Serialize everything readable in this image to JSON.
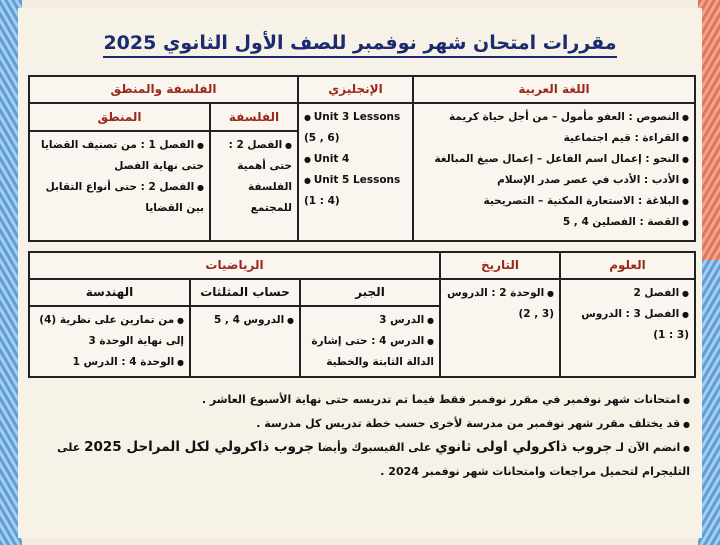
{
  "title": "مقررات امتحان شهر نوفمبر للصف الأول الثانوي 2025",
  "table1": {
    "headers": {
      "arabic": "اللغة العربية",
      "english": "الإنجليزي",
      "philosophy_logic": "الفلسفة والمنطق",
      "philosophy": "الفلسفة",
      "logic": "المنطق"
    },
    "arabic": [
      "النصوص : العفو مأمول – من أجل حياة كريمة",
      "القراءة : قيم اجتماعية",
      "النحو : إعمال اسم الفاعل – إعمال صيغ المبالغة",
      "الأدب : الأدب في عصر صدر الإسلام",
      "البلاغة : الاستعارة المكنية – التصريحية",
      "القصة : الفصلين 4 , 5"
    ],
    "english": [
      "Unit 3 Lessons (5 , 6)",
      "Unit 4",
      "Unit 5 Lessons (1 : 4)"
    ],
    "philosophy": [
      "الفصل 2 : حتى أهمية الفلسفة للمجتمع"
    ],
    "logic": [
      "الفصل 1 : من تصنيف القضايا حتى نهاية الفصل",
      "الفصل 2 : حتى أنواع التقابل بين القضايا"
    ]
  },
  "table2": {
    "headers": {
      "science": "العلوم",
      "history": "التاريخ",
      "math": "الرياضيات",
      "algebra": "الجبر",
      "trig": "حساب المثلثات",
      "geometry": "الهندسة"
    },
    "science": [
      "الفصل 2",
      "الفصل 3 : الدروس (3 : 1)"
    ],
    "history": [
      "الوحدة 2 : الدروس (3 , 2)"
    ],
    "algebra": [
      "الدرس 3",
      "الدرس 4 : حتى إشارة الدالة الثابتة والخطية"
    ],
    "trig": [
      "الدروس 4 , 5"
    ],
    "geometry": [
      "من تمارين على نظرية (4) إلى نهاية الوحدة 3",
      "الوحدة 4 : الدرس 1"
    ]
  },
  "notes": {
    "n1": "امتحانات شهر نوفمبر في مقرر نوفمبر فقط فيما تم تدريسه حتى نهاية الأسبوع العاشر .",
    "n2": "قد يختلف مقرر شهر نوفمبر من مدرسة لأخرى حسب خطة تدريس كل مدرسة .",
    "n3a": "انضم الآن لـ",
    "n3b": "جروب ذاكرولي اولى ثانوي",
    "n3c": "على الفيسبوك وأيضا",
    "n3d": "جروب ذاكرولي لكل المراحل 2025",
    "n3e": "على التليجرام لتحميل مراجعات وامتحانات شهر نوفمبر 2024 ."
  },
  "colors": {
    "title": "#1c2a6e",
    "header": "#9b2a1c"
  }
}
